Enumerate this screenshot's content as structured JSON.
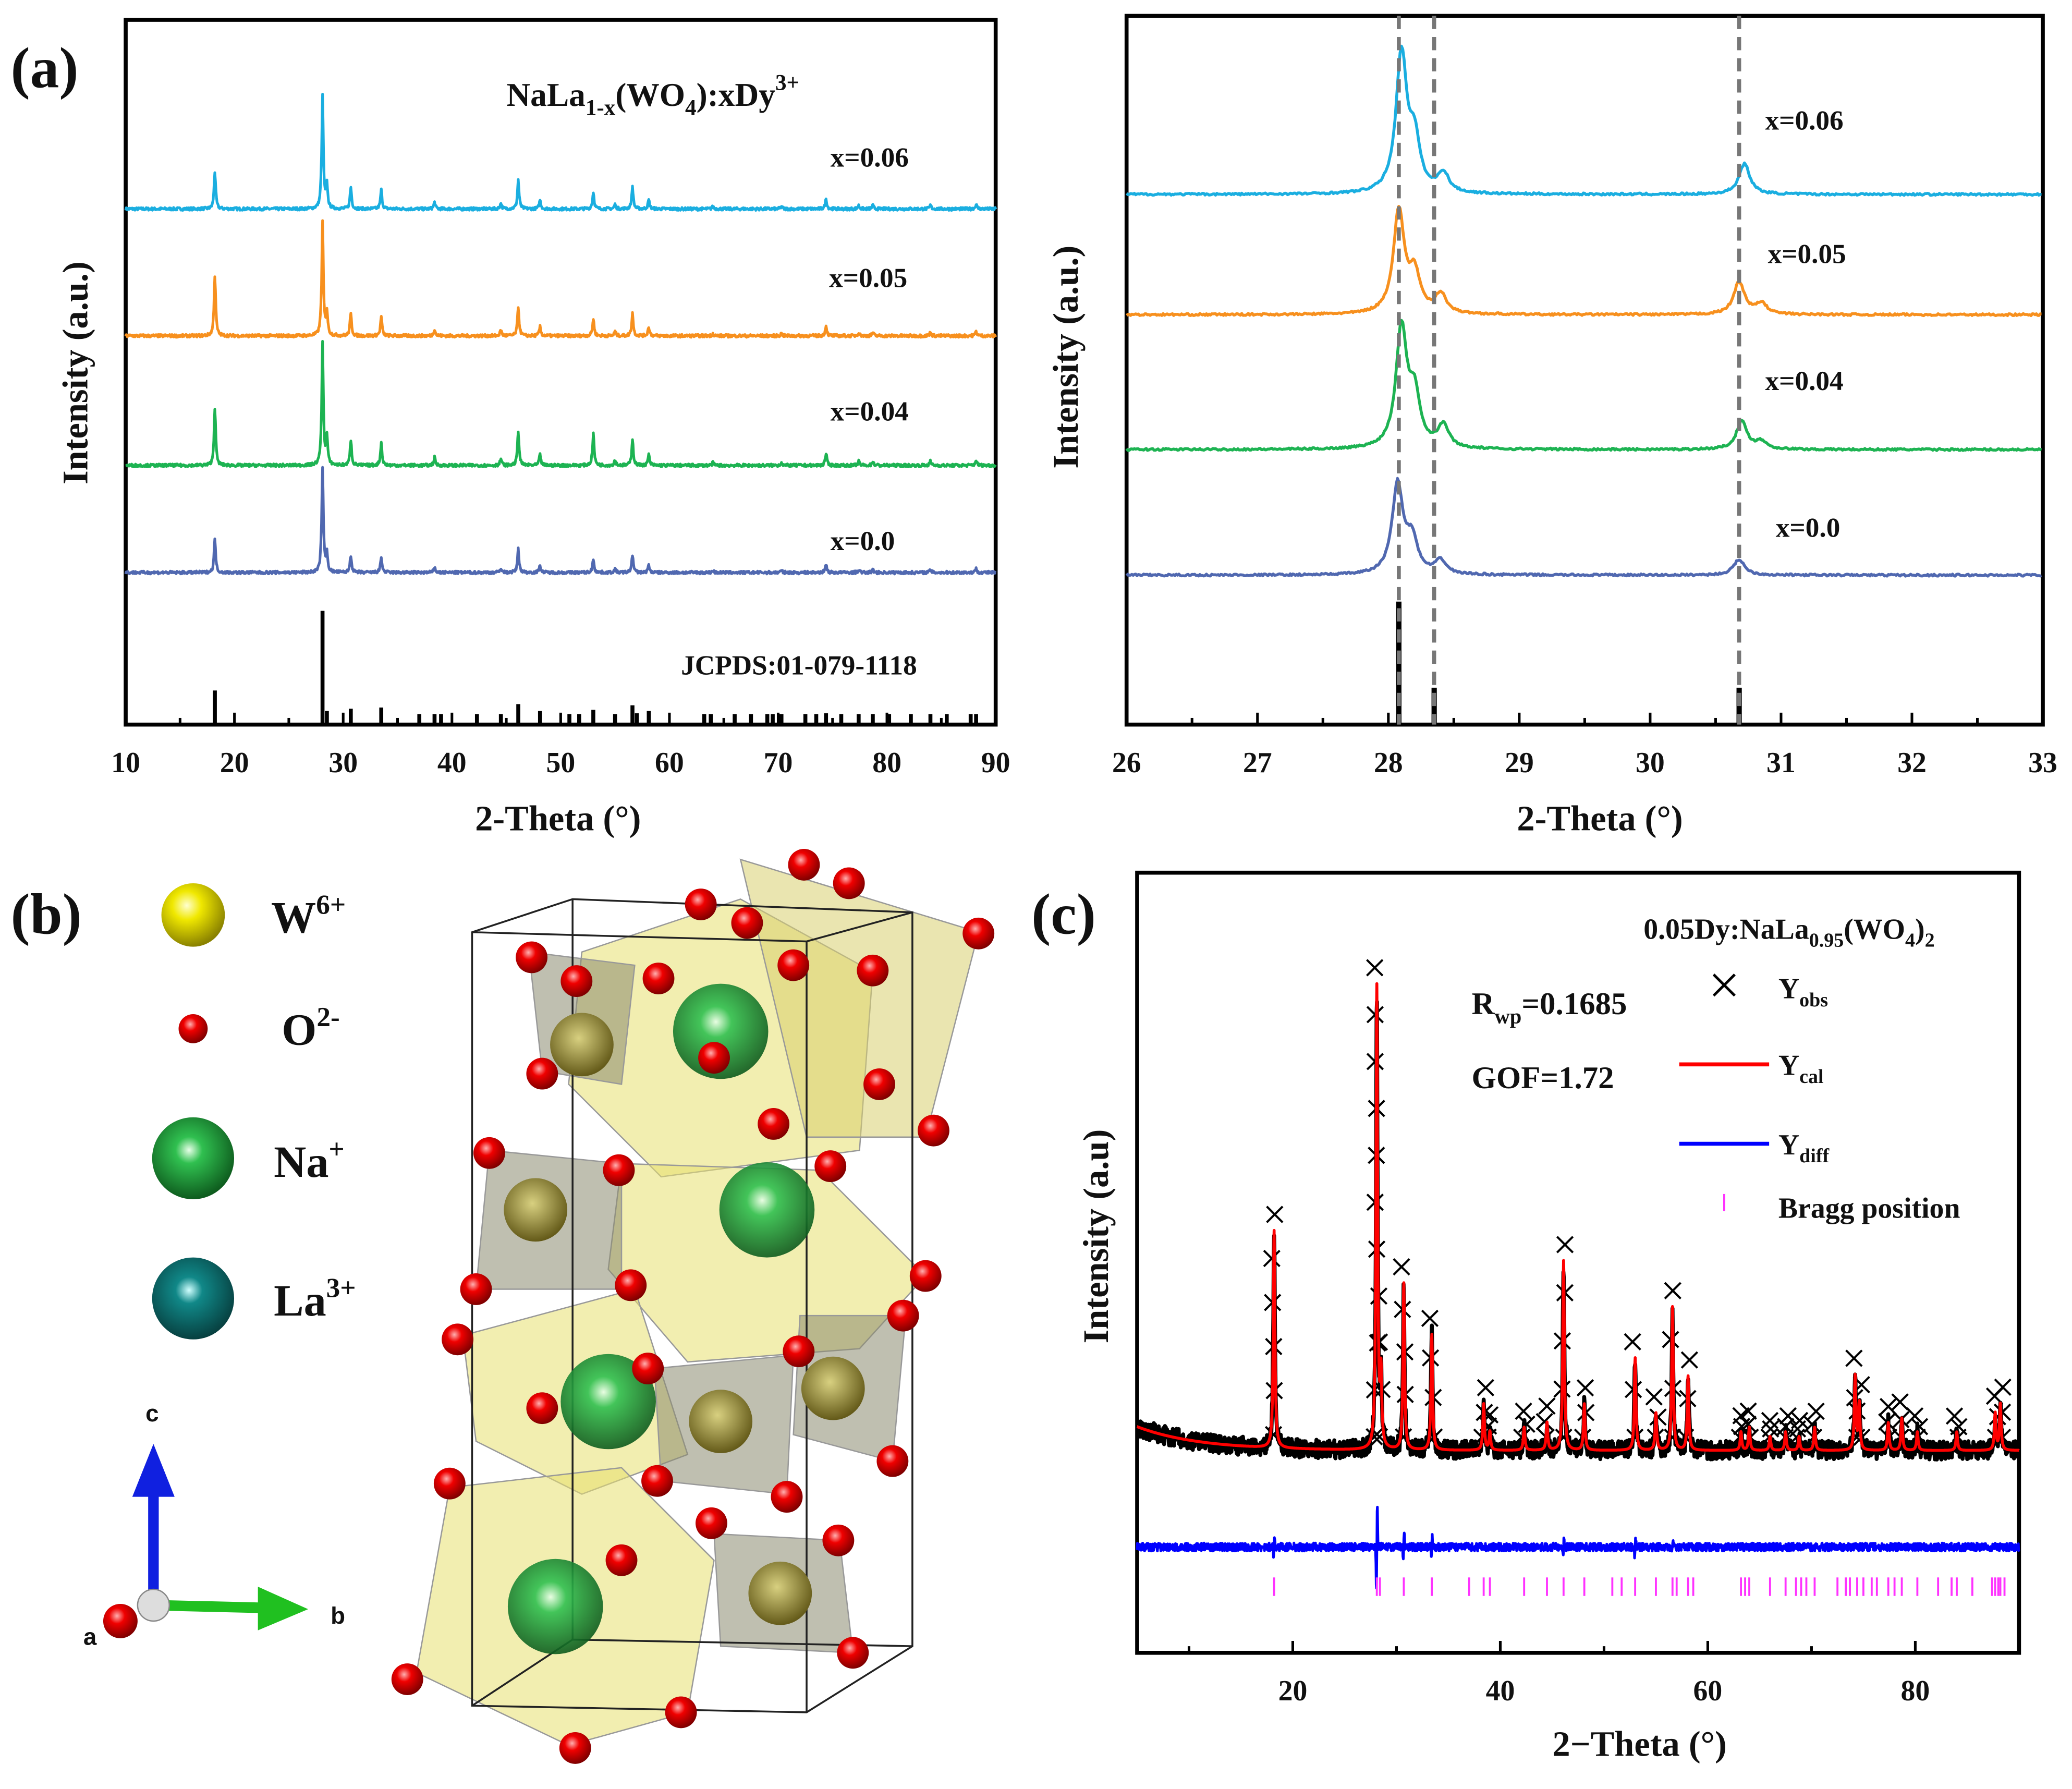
{
  "panels": {
    "a": {
      "label": "(a)"
    },
    "b": {
      "label": "(b)"
    },
    "c": {
      "label": "(c)"
    }
  },
  "colors": {
    "x006": "#1aaee0",
    "x005": "#f7901e",
    "x004": "#1db352",
    "x000": "#5068b0",
    "reference": "#000000",
    "ycal": "#ff0000",
    "ydiff": "#0000ff",
    "bragg": "#ff33ff",
    "yobs": "#000000"
  },
  "chart_data": [
    {
      "type": "line",
      "title_parts": [
        "NaLa",
        "1-x",
        "(WO",
        "4",
        "):xDy",
        "3+"
      ],
      "xlabel": "2-Theta (°)",
      "ylabel": "Intensity (a.u.)",
      "xlim": [
        10,
        90
      ],
      "xticks": [
        "10",
        "20",
        "30",
        "40",
        "50",
        "60",
        "70",
        "80",
        "90"
      ],
      "grid": false,
      "series": [
        {
          "name": "x=0.06",
          "scale": 1.0,
          "boost": {
            "18.2": 1.0,
            "53": 1.0
          }
        },
        {
          "name": "x=0.05",
          "scale": 1.0,
          "boost": {
            "18.2": 1.6,
            "53": 1.0
          }
        },
        {
          "name": "x=0.04",
          "scale": 1.1,
          "boost": {
            "18.2": 1.3,
            "53": 1.6
          }
        },
        {
          "name": "x=0.0",
          "scale": 0.85,
          "boost": {
            "18.2": 1.1,
            "53": 1.0
          }
        }
      ],
      "reference": {
        "name": "JCPDS:01-079-1118",
        "peaks": [
          [
            18.2,
            0.3
          ],
          [
            28.1,
            1.0
          ],
          [
            28.5,
            0.12
          ],
          [
            30.7,
            0.14
          ],
          [
            33.5,
            0.15
          ],
          [
            37.0,
            0.05
          ],
          [
            38.4,
            0.07
          ],
          [
            39.0,
            0.05
          ],
          [
            42.3,
            0.05
          ],
          [
            44.5,
            0.06
          ],
          [
            46.1,
            0.18
          ],
          [
            48.1,
            0.12
          ],
          [
            50.8,
            0.04
          ],
          [
            51.7,
            0.04
          ],
          [
            53.0,
            0.13
          ],
          [
            55.0,
            0.06
          ],
          [
            56.6,
            0.17
          ],
          [
            57.0,
            0.1
          ],
          [
            58.1,
            0.12
          ],
          [
            63.2,
            0.05
          ],
          [
            63.8,
            0.05
          ],
          [
            66.0,
            0.04
          ],
          [
            67.5,
            0.05
          ],
          [
            69.0,
            0.05
          ],
          [
            69.5,
            0.05
          ],
          [
            70.3,
            0.05
          ],
          [
            72.5,
            0.04
          ],
          [
            73.5,
            0.05
          ],
          [
            74.4,
            0.1
          ],
          [
            75.8,
            0.05
          ],
          [
            77.4,
            0.07
          ],
          [
            78.7,
            0.07
          ],
          [
            80.2,
            0.06
          ],
          [
            82.2,
            0.04
          ],
          [
            84.0,
            0.05
          ],
          [
            85.5,
            0.04
          ],
          [
            87.7,
            0.06
          ],
          [
            88.2,
            0.07
          ]
        ]
      },
      "sample_peaks": [
        [
          18.2,
          0.33
        ],
        [
          28.1,
          1.0
        ],
        [
          28.5,
          0.2
        ],
        [
          30.7,
          0.19
        ],
        [
          33.5,
          0.17
        ],
        [
          38.4,
          0.06
        ],
        [
          44.5,
          0.05
        ],
        [
          46.1,
          0.26
        ],
        [
          48.1,
          0.08
        ],
        [
          53.0,
          0.15
        ],
        [
          55.0,
          0.04
        ],
        [
          56.6,
          0.2
        ],
        [
          58.1,
          0.08
        ],
        [
          64.0,
          0.02
        ],
        [
          70.3,
          0.02
        ],
        [
          74.4,
          0.09
        ],
        [
          77.4,
          0.03
        ],
        [
          78.7,
          0.03
        ],
        [
          84.0,
          0.03
        ],
        [
          88.2,
          0.04
        ]
      ]
    },
    {
      "type": "line",
      "xlabel": "2-Theta (°)",
      "ylabel": "Intensity (a.u.)",
      "xlim": [
        26,
        33
      ],
      "xticks": [
        "26",
        "27",
        "28",
        "29",
        "30",
        "31",
        "32",
        "33"
      ],
      "dashed_lines": [
        28.08,
        28.35,
        30.68
      ],
      "series": [
        {
          "name": "x=0.06",
          "peaks": [
            [
              28.1,
              1.0
            ],
            [
              28.2,
              0.35
            ],
            [
              28.42,
              0.14
            ],
            [
              30.72,
              0.22
            ]
          ]
        },
        {
          "name": "x=0.05",
          "peaks": [
            [
              28.08,
              0.95
            ],
            [
              28.2,
              0.35
            ],
            [
              28.4,
              0.18
            ],
            [
              30.68,
              0.3
            ],
            [
              30.85,
              0.1
            ]
          ]
        },
        {
          "name": "x=0.04",
          "peaks": [
            [
              28.1,
              0.95
            ],
            [
              28.2,
              0.4
            ],
            [
              28.42,
              0.18
            ],
            [
              30.7,
              0.22
            ],
            [
              30.85,
              0.06
            ]
          ]
        },
        {
          "name": "x=0.0",
          "peaks": [
            [
              28.07,
              0.8
            ],
            [
              28.18,
              0.3
            ],
            [
              28.4,
              0.12
            ],
            [
              30.68,
              0.14
            ]
          ]
        }
      ],
      "reference": {
        "peaks": [
          [
            28.08,
            1.0
          ],
          [
            28.35,
            0.3
          ],
          [
            30.68,
            0.3
          ]
        ]
      }
    },
    {
      "type": "scatter",
      "title_parts": [
        "0.05Dy:NaLa",
        "0.95",
        "(WO",
        "4",
        ")",
        "2"
      ],
      "xlabel": "2−Theta (°)",
      "ylabel": "Intensity (a.u)",
      "xlim": [
        5,
        90
      ],
      "xticks": [
        "20",
        "40",
        "60",
        "80"
      ],
      "annotations": {
        "rwp_parts": [
          "R",
          "wp",
          "=0.1685"
        ],
        "gof": "GOF=1.72"
      },
      "legend": {
        "position": "top-right",
        "yobs": [
          "Y",
          "obs"
        ],
        "ycal": [
          "Y",
          "cal"
        ],
        "ydiff": [
          "Y",
          "diff"
        ],
        "bragg": "Bragg position"
      },
      "peaks": [
        [
          18.2,
          0.47
        ],
        [
          28.1,
          1.0
        ],
        [
          28.5,
          0.15
        ],
        [
          30.7,
          0.36
        ],
        [
          33.4,
          0.25
        ],
        [
          38.4,
          0.1
        ],
        [
          39.0,
          0.04
        ],
        [
          42.3,
          0.05
        ],
        [
          44.5,
          0.06
        ],
        [
          46.1,
          0.41
        ],
        [
          48.1,
          0.1
        ],
        [
          53.0,
          0.2
        ],
        [
          55.0,
          0.08
        ],
        [
          56.6,
          0.31
        ],
        [
          58.1,
          0.16
        ],
        [
          63.2,
          0.04
        ],
        [
          64.0,
          0.05
        ],
        [
          66.0,
          0.03
        ],
        [
          67.5,
          0.04
        ],
        [
          68.8,
          0.03
        ],
        [
          70.3,
          0.05
        ],
        [
          74.2,
          0.16
        ],
        [
          74.6,
          0.1
        ],
        [
          77.4,
          0.06
        ],
        [
          78.7,
          0.07
        ],
        [
          80.2,
          0.04
        ],
        [
          84.0,
          0.04
        ],
        [
          87.7,
          0.08
        ],
        [
          88.2,
          0.1
        ]
      ],
      "diff_peaks": [
        [
          18.2,
          0.06
        ],
        [
          28.1,
          0.2
        ],
        [
          30.7,
          0.06
        ],
        [
          33.4,
          0.06
        ],
        [
          46.1,
          0.05
        ],
        [
          53.0,
          0.04
        ],
        [
          56.6,
          0.02
        ]
      ],
      "bragg_positions": [
        18.2,
        28.1,
        28.4,
        30.7,
        33.4,
        37.0,
        38.4,
        39.0,
        42.3,
        44.5,
        46.1,
        48.1,
        50.8,
        51.7,
        53.0,
        55.0,
        56.6,
        57.0,
        58.1,
        58.6,
        63.2,
        63.6,
        64.0,
        66.0,
        67.5,
        68.5,
        69.0,
        69.5,
        70.3,
        72.5,
        73.3,
        73.7,
        74.4,
        75.0,
        75.8,
        76.3,
        77.4,
        78.0,
        78.7,
        80.2,
        82.2,
        83.5,
        84.0,
        85.5,
        87.4,
        87.7,
        88.0,
        88.2,
        88.6
      ]
    }
  ],
  "structure_legend": {
    "items": [
      {
        "ion": "W",
        "charge": "6+"
      },
      {
        "ion": "O",
        "charge": "2-"
      },
      {
        "ion": "Na",
        "charge": "+"
      },
      {
        "ion": "La",
        "charge": "3+"
      }
    ],
    "axes": {
      "a": "a",
      "b": "b",
      "c": "c"
    }
  }
}
